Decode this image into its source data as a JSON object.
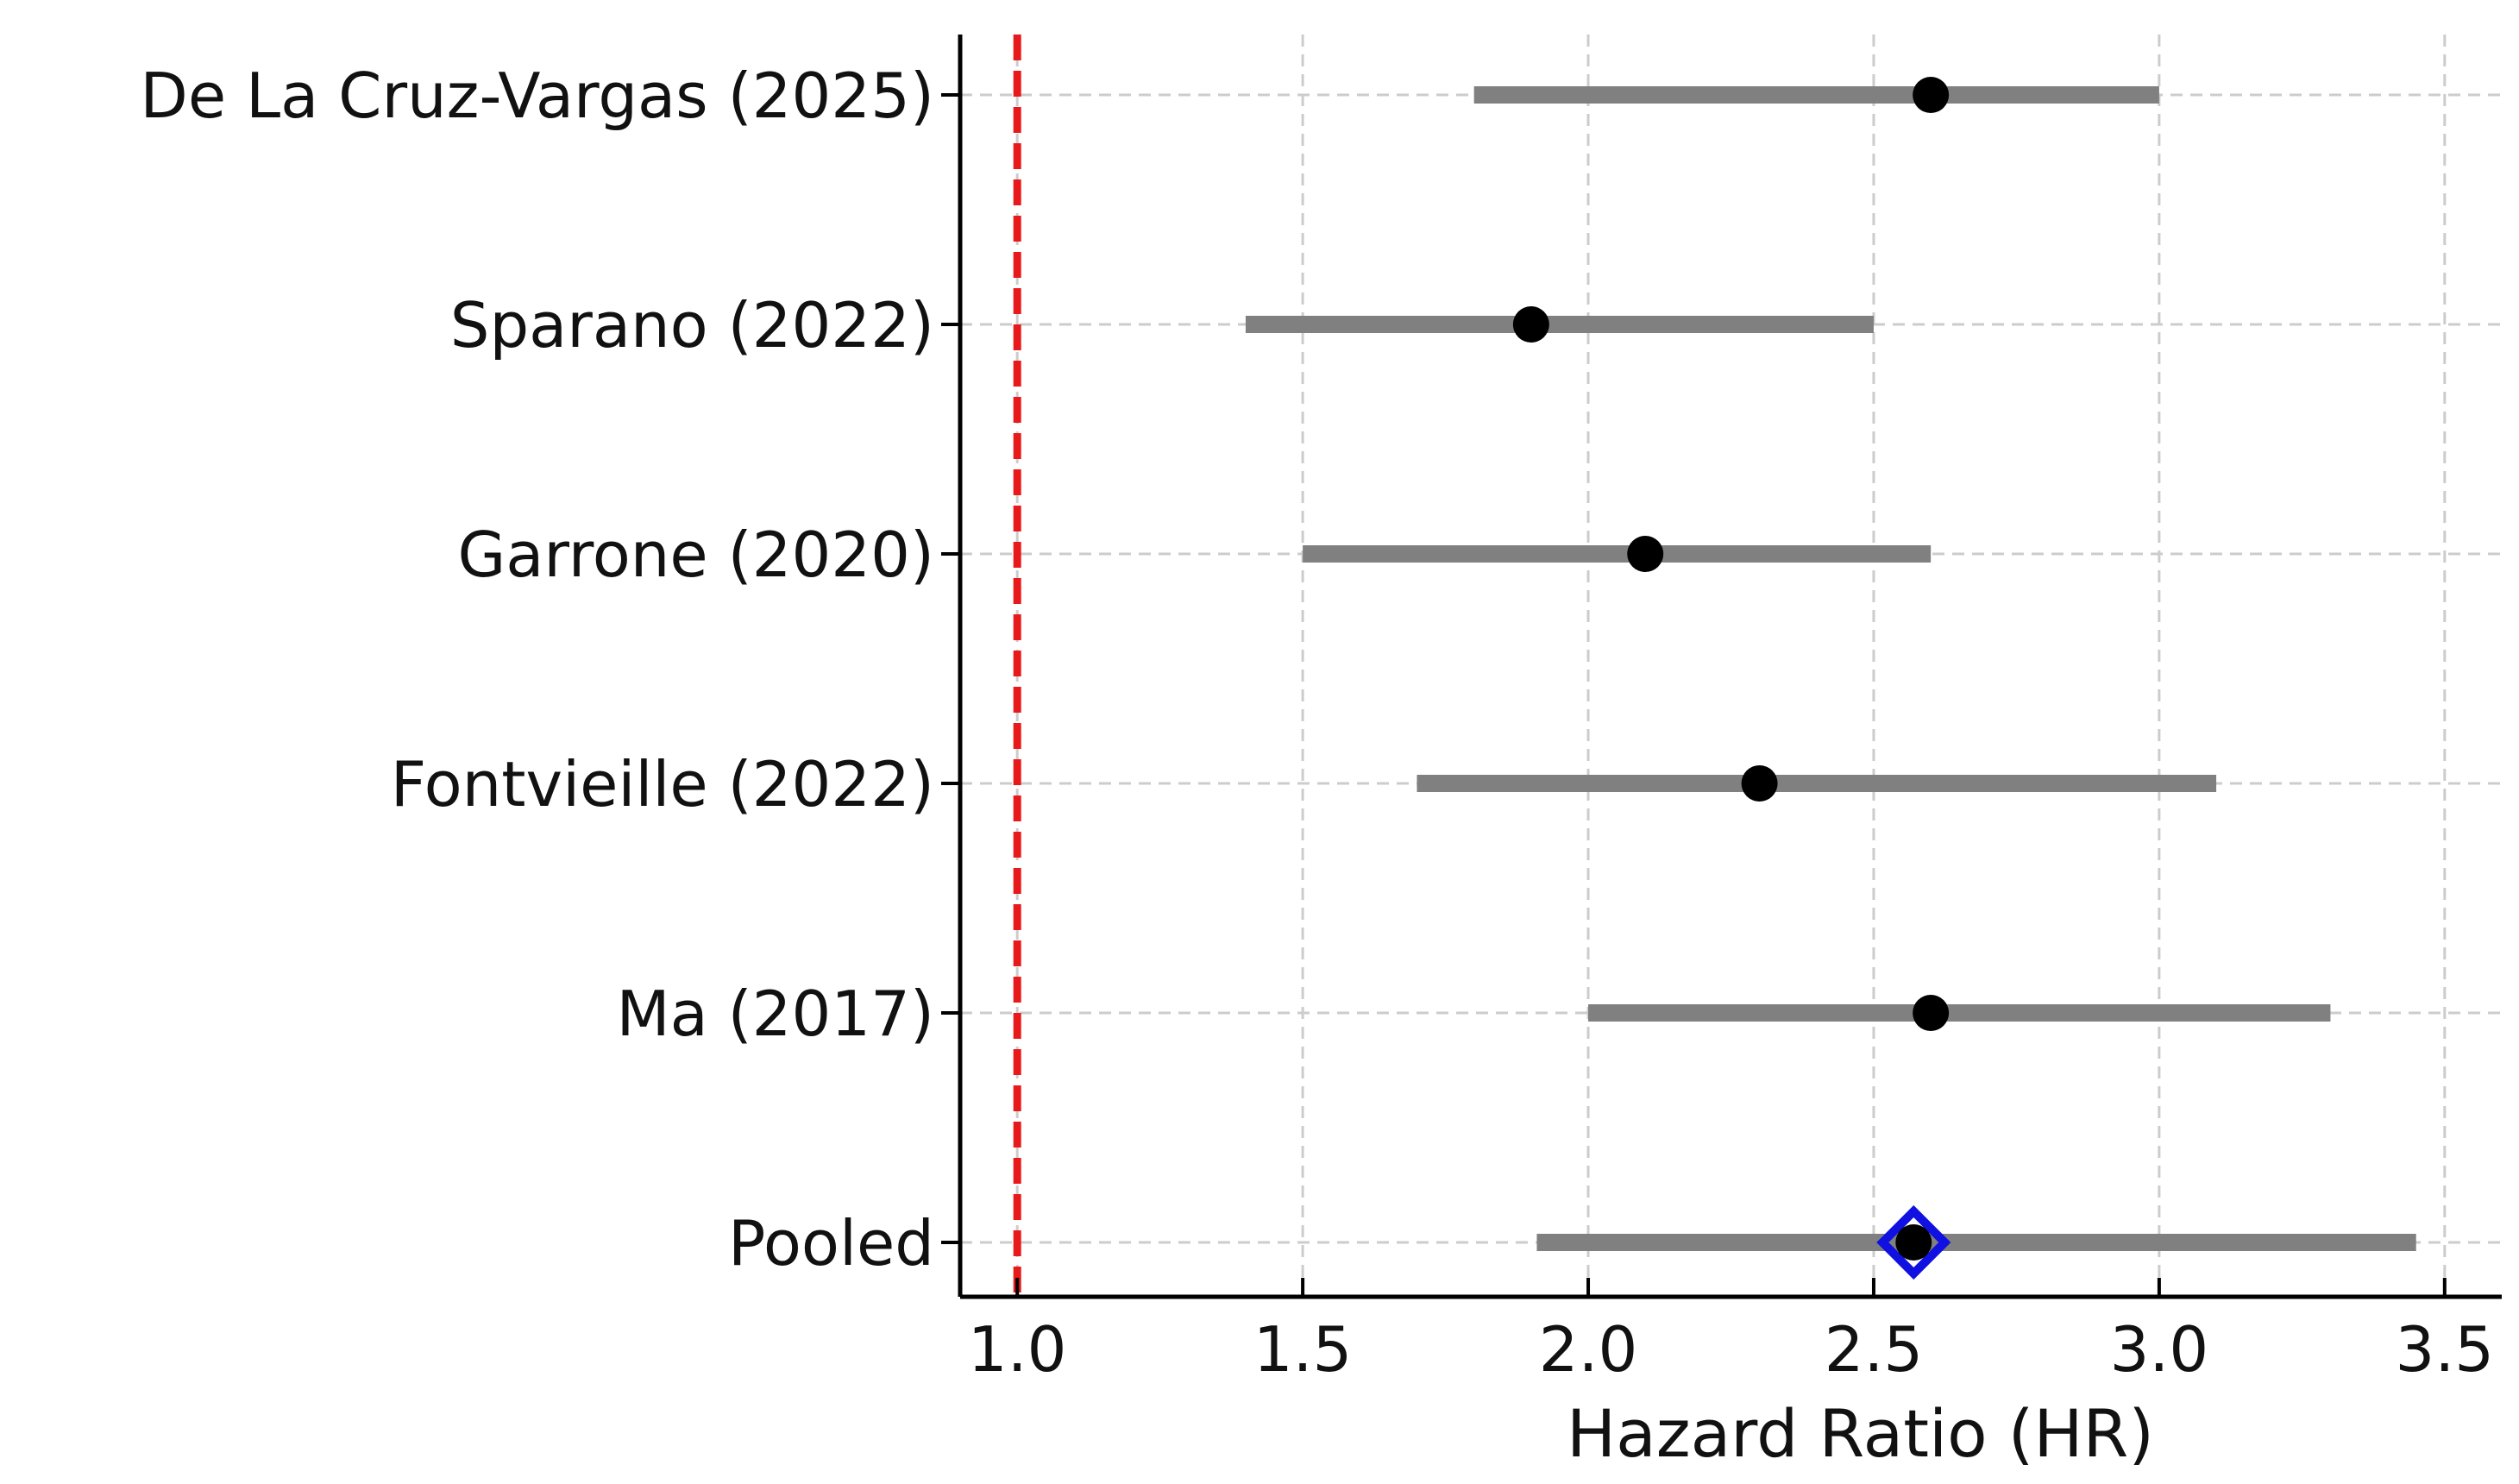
{
  "chart_data": {
    "type": "forest",
    "title": "",
    "xlabel": "Hazard Ratio (HR)",
    "ylabel": "",
    "xlim": [
      0.9,
      3.6
    ],
    "xticks": [
      1.0,
      1.5,
      2.0,
      2.5,
      3.0,
      3.5
    ],
    "xtick_labels": [
      "1.0",
      "1.5",
      "2.0",
      "2.5",
      "3.0",
      "3.5"
    ],
    "grid": true,
    "reference_line": {
      "x": 1.0,
      "color": "#e8191a",
      "style": "dashed"
    },
    "colors": {
      "ci": "#808080",
      "point": "#000000",
      "pooled_marker": "#1010e0",
      "grid": "#cccccc"
    },
    "studies": [
      {
        "label": "De La Cruz-Vargas (2025)",
        "hr": 2.6,
        "lower": 1.8,
        "upper": 3.0
      },
      {
        "label": "Sparano (2022)",
        "hr": 1.9,
        "lower": 1.4,
        "upper": 2.5
      },
      {
        "label": "Garrone (2020)",
        "hr": 2.1,
        "lower": 1.5,
        "upper": 2.6
      },
      {
        "label": "Fontvieille (2022)",
        "hr": 2.3,
        "lower": 1.7,
        "upper": 3.1
      },
      {
        "label": "Ma (2017)",
        "hr": 2.6,
        "lower": 2.0,
        "upper": 3.3
      },
      {
        "label": "Pooled",
        "hr": 2.57,
        "lower": 1.91,
        "upper": 3.45,
        "pooled": true
      }
    ]
  }
}
